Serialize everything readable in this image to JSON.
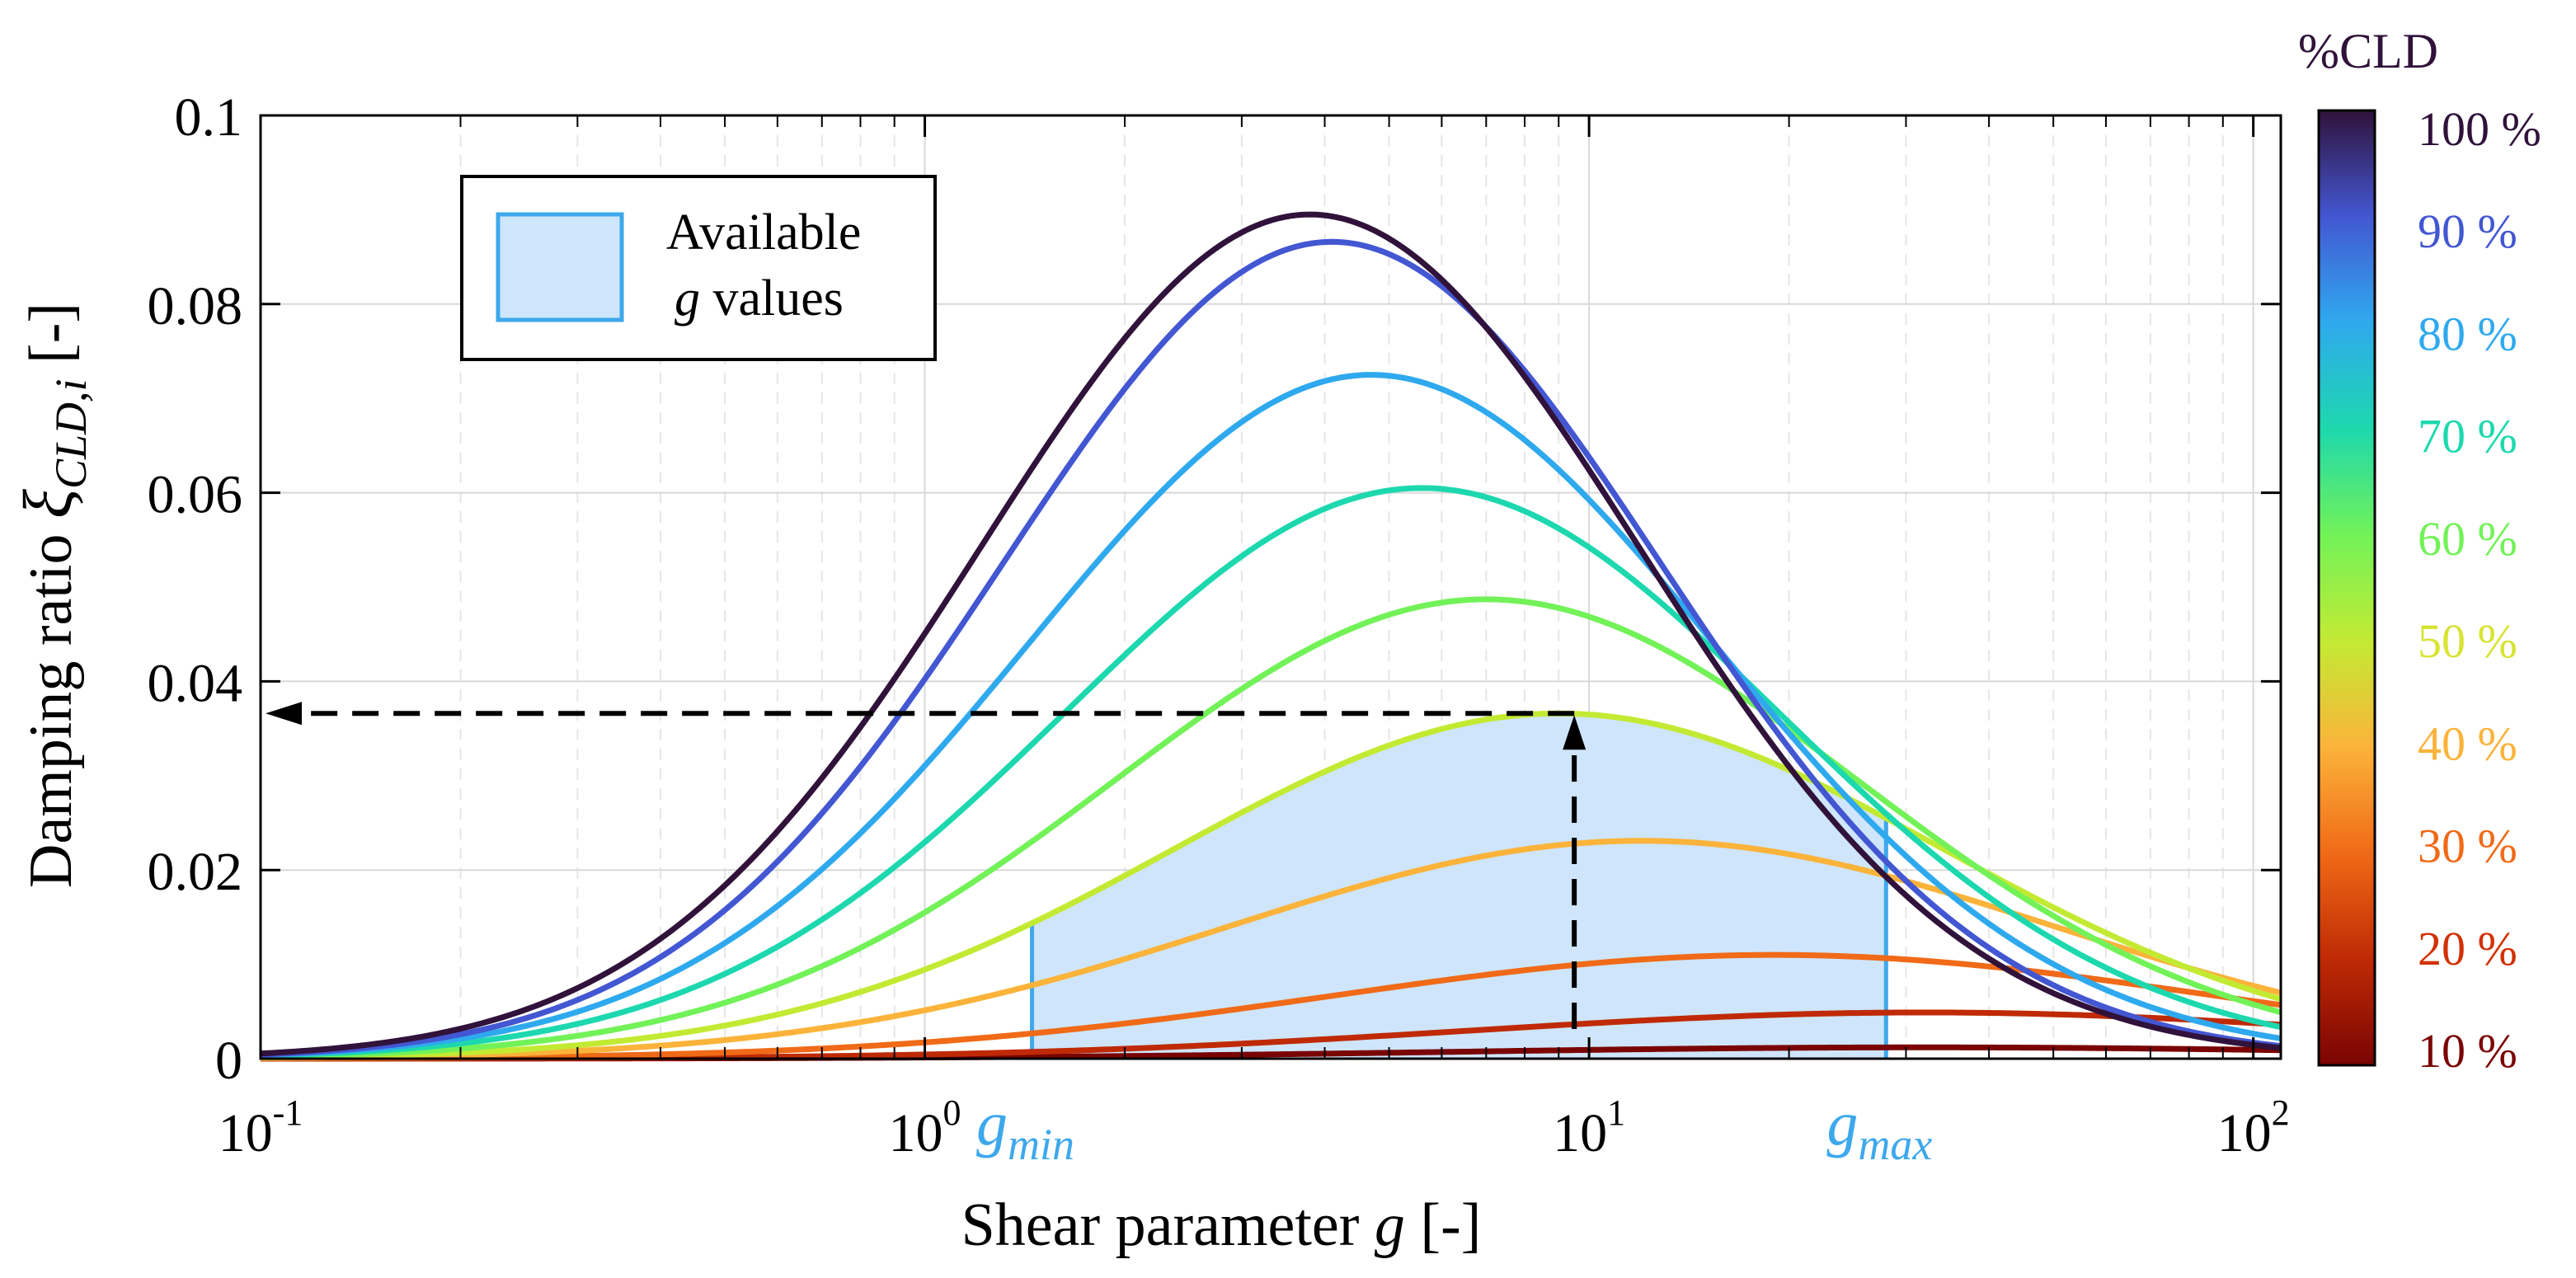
{
  "chart_data": {
    "type": "line",
    "xscale": "log",
    "xlim": [
      0.1,
      110
    ],
    "ylim": [
      0,
      0.1
    ],
    "xlabel": "Shear parameter  g [-]",
    "xlabel_parts": {
      "text": "Shear parameter",
      "symbol": "g",
      "unit": "[-]"
    },
    "ylabel_parts": {
      "text": "Damping ratio",
      "symbol": "ξ",
      "subscript": "CLD,i",
      "unit": "[-]"
    },
    "yticks": [
      {
        "value": 0,
        "label": "0"
      },
      {
        "value": 0.02,
        "label": "0.02"
      },
      {
        "value": 0.04,
        "label": "0.04"
      },
      {
        "value": 0.06,
        "label": "0.06"
      },
      {
        "value": 0.08,
        "label": "0.08"
      },
      {
        "value": 0.1,
        "label": "0.1"
      }
    ],
    "xticks": [
      {
        "value": 0.1,
        "base": "10",
        "exp": "-1"
      },
      {
        "value": 1,
        "base": "10",
        "exp": "0"
      },
      {
        "value": 10,
        "base": "10",
        "exp": "1"
      },
      {
        "value": 100,
        "base": "10",
        "exp": "2"
      }
    ],
    "series": [
      {
        "name": "10 %",
        "color": "#7a0403",
        "peak_g": 32.0,
        "peak_xi": 0.0012,
        "width_decades": 1.0
      },
      {
        "name": "20 %",
        "color": "#bf2a05",
        "peak_g": 32.0,
        "peak_xi": 0.0049,
        "width_decades": 0.97
      },
      {
        "name": "30 %",
        "color": "#f06a17",
        "peak_g": 19.0,
        "peak_xi": 0.011,
        "width_decades": 0.94
      },
      {
        "name": "40 %",
        "color": "#fbb33a",
        "peak_g": 12.0,
        "peak_xi": 0.0231,
        "width_decades": 0.88
      },
      {
        "name": "50 %",
        "color": "#c3ea33",
        "peak_g": 9.0,
        "peak_xi": 0.0366,
        "width_decades": 0.82
      },
      {
        "name": "60 %",
        "color": "#72f258",
        "peak_g": 7.0,
        "peak_xi": 0.0487,
        "width_decades": 0.79
      },
      {
        "name": "70 %",
        "color": "#1dd8ae",
        "peak_g": 5.6,
        "peak_xi": 0.0605,
        "width_decades": 0.76
      },
      {
        "name": "80 %",
        "color": "#2fa9ee",
        "peak_g": 4.7,
        "peak_xi": 0.0725,
        "width_decades": 0.73
      },
      {
        "name": "90 %",
        "color": "#4357d2",
        "peak_g": 4.1,
        "peak_xi": 0.0866,
        "width_decades": 0.7
      },
      {
        "name": "100 %",
        "color": "#30123b",
        "peak_g": 3.8,
        "peak_xi": 0.0895,
        "width_decades": 0.7
      }
    ],
    "shaded_region": {
      "series_index": 4,
      "g_min": 1.45,
      "g_max": 28.0,
      "fill": "#cfe5fb",
      "edge": "#3ea8ec"
    },
    "annotation": {
      "g": 9.5,
      "xi": 0.0366,
      "arrow_color": "#000000"
    },
    "gmin_label": {
      "symbol": "g",
      "sub": "min",
      "value": 1.45
    },
    "gmax_label": {
      "symbol": "g",
      "sub": "max",
      "value": 28.0
    },
    "legend": {
      "position": "top-left",
      "swatch_fill": "#cfe5fb",
      "swatch_edge": "#3ea8ec",
      "line1": "Available",
      "line2_symbol": "g",
      "line2_text": " values"
    },
    "colorbar": {
      "title": "%CLD",
      "colors": [
        "#7a0403",
        "#bf2a05",
        "#f06a17",
        "#fbb33a",
        "#c3ea33",
        "#72f258",
        "#1dd8ae",
        "#2fa9ee",
        "#4357d2",
        "#30123b"
      ],
      "labels": [
        "10 %",
        "20 %",
        "30 %",
        "40 %",
        "50 %",
        "60 %",
        "70 %",
        "80 %",
        "90 %",
        "100 %"
      ],
      "label_colors": [
        "#7a0403",
        "#d23105",
        "#f06a17",
        "#fbb33a",
        "#d7e432",
        "#72f258",
        "#1dd8ae",
        "#2fa9ee",
        "#4357d2",
        "#30123b"
      ]
    },
    "axis_color": "#000000",
    "grid_color": "#d8d8d8",
    "grid": true
  }
}
